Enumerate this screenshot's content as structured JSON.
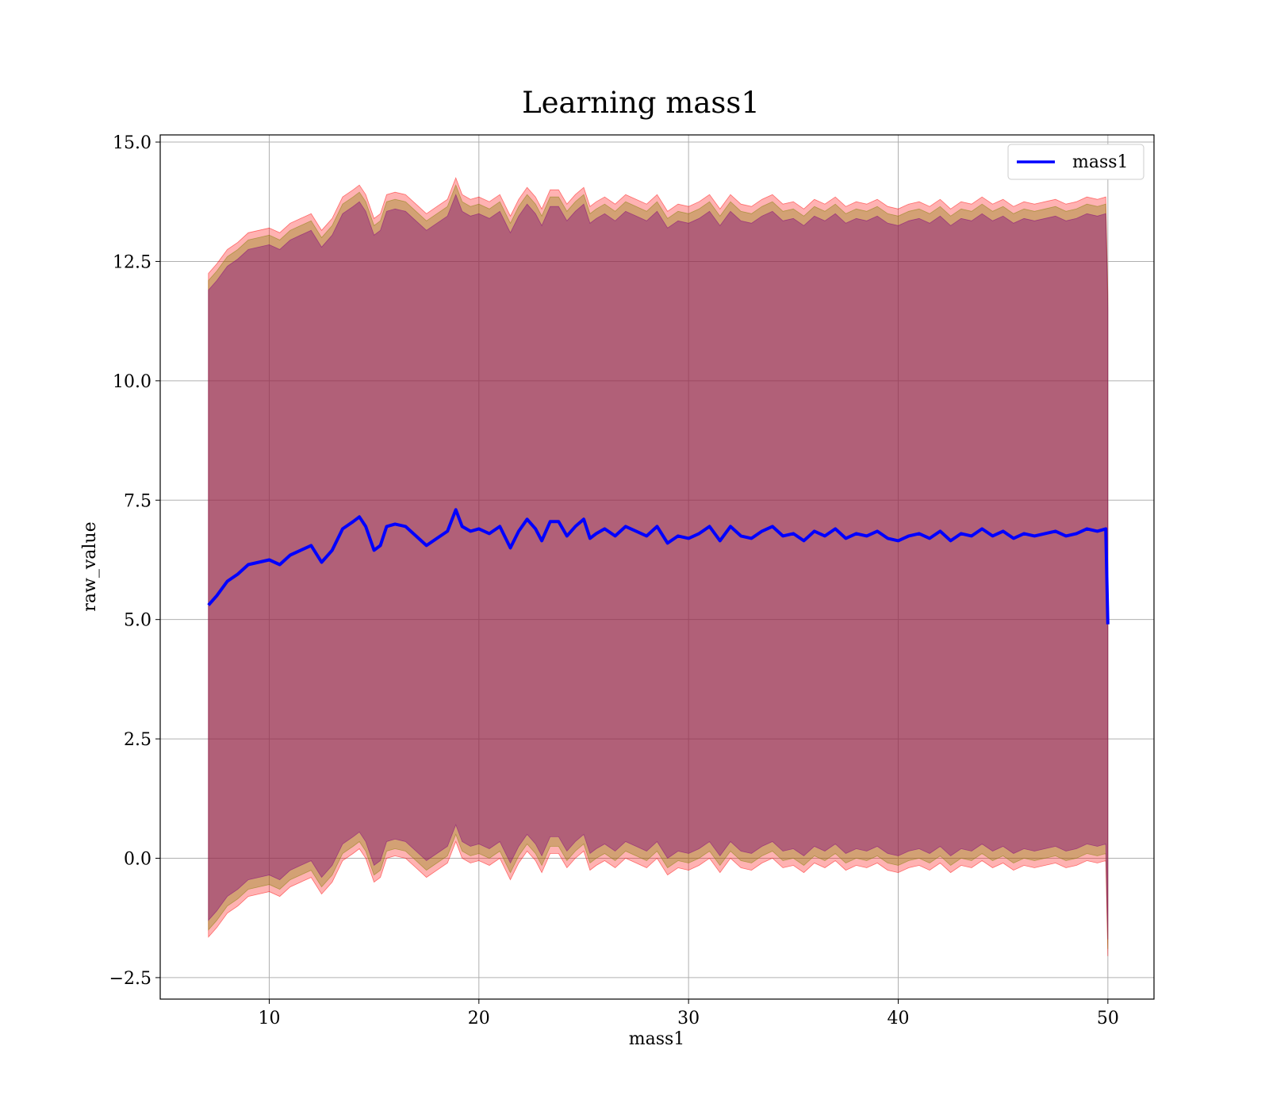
{
  "chart_data": {
    "type": "area",
    "title": "Learning mass1",
    "xlabel": "mass1",
    "ylabel": "raw_value",
    "xlim": [
      4.8,
      52.2
    ],
    "ylim": [
      -2.95,
      15.15
    ],
    "x_ticks": [
      10,
      20,
      30,
      40,
      50
    ],
    "x_tick_labels": [
      "10",
      "20",
      "30",
      "40",
      "50"
    ],
    "y_ticks": [
      -2.5,
      0.0,
      2.5,
      5.0,
      7.5,
      10.0,
      12.5,
      15.0
    ],
    "y_tick_labels": [
      "−2.5",
      "0.0",
      "2.5",
      "5.0",
      "7.5",
      "10.0",
      "12.5",
      "15.0"
    ],
    "grid": true,
    "legend_position": "top-right",
    "series": [
      {
        "name": "mass1",
        "color": "#0000ff",
        "x": [
          7.1,
          7.5,
          8.0,
          8.5,
          9.0,
          9.5,
          10.0,
          10.5,
          11.0,
          11.5,
          12.0,
          12.5,
          13.0,
          13.5,
          14.0,
          14.3,
          14.6,
          15.0,
          15.3,
          15.6,
          16.0,
          16.5,
          17.0,
          17.5,
          18.0,
          18.5,
          18.9,
          19.2,
          19.6,
          20.0,
          20.5,
          21.0,
          21.5,
          21.9,
          22.3,
          22.7,
          23.0,
          23.4,
          23.8,
          24.2,
          24.6,
          25.0,
          25.3,
          25.6,
          26.0,
          26.5,
          27.0,
          27.5,
          28.0,
          28.5,
          29.0,
          29.5,
          30.0,
          30.5,
          31.0,
          31.5,
          32.0,
          32.5,
          33.0,
          33.5,
          34.0,
          34.5,
          35.0,
          35.5,
          36.0,
          36.5,
          37.0,
          37.5,
          38.0,
          38.5,
          39.0,
          39.5,
          40.0,
          40.5,
          41.0,
          41.5,
          42.0,
          42.5,
          43.0,
          43.5,
          44.0,
          44.5,
          45.0,
          45.5,
          46.0,
          46.5,
          47.0,
          47.5,
          48.0,
          48.5,
          49.0,
          49.5,
          49.9,
          50.0
        ],
        "values": [
          5.3,
          5.5,
          5.8,
          5.95,
          6.15,
          6.2,
          6.25,
          6.15,
          6.35,
          6.45,
          6.55,
          6.2,
          6.45,
          6.9,
          7.05,
          7.15,
          6.95,
          6.45,
          6.55,
          6.95,
          7.0,
          6.95,
          6.75,
          6.55,
          6.7,
          6.85,
          7.3,
          6.95,
          6.85,
          6.9,
          6.8,
          6.95,
          6.5,
          6.85,
          7.1,
          6.9,
          6.65,
          7.05,
          7.05,
          6.75,
          6.95,
          7.1,
          6.7,
          6.8,
          6.9,
          6.75,
          6.95,
          6.85,
          6.75,
          6.95,
          6.6,
          6.75,
          6.7,
          6.8,
          6.95,
          6.65,
          6.95,
          6.75,
          6.7,
          6.85,
          6.95,
          6.75,
          6.8,
          6.65,
          6.85,
          6.75,
          6.9,
          6.7,
          6.8,
          6.75,
          6.85,
          6.7,
          6.65,
          6.75,
          6.8,
          6.7,
          6.85,
          6.65,
          6.8,
          6.75,
          6.9,
          6.75,
          6.85,
          6.7,
          6.8,
          6.75,
          6.8,
          6.85,
          6.75,
          6.8,
          6.9,
          6.85,
          6.9,
          4.9
        ]
      }
    ],
    "bands": [
      {
        "color": "#ff0000",
        "opacity": 0.3,
        "offset_upper": 6.95,
        "offset_lower": 6.95
      },
      {
        "color": "#808000",
        "opacity": 0.35,
        "offset_upper": 6.8,
        "offset_lower": 6.8
      },
      {
        "color": "#800080",
        "opacity": 0.4,
        "offset_upper": 6.6,
        "offset_lower": 6.6
      }
    ]
  }
}
